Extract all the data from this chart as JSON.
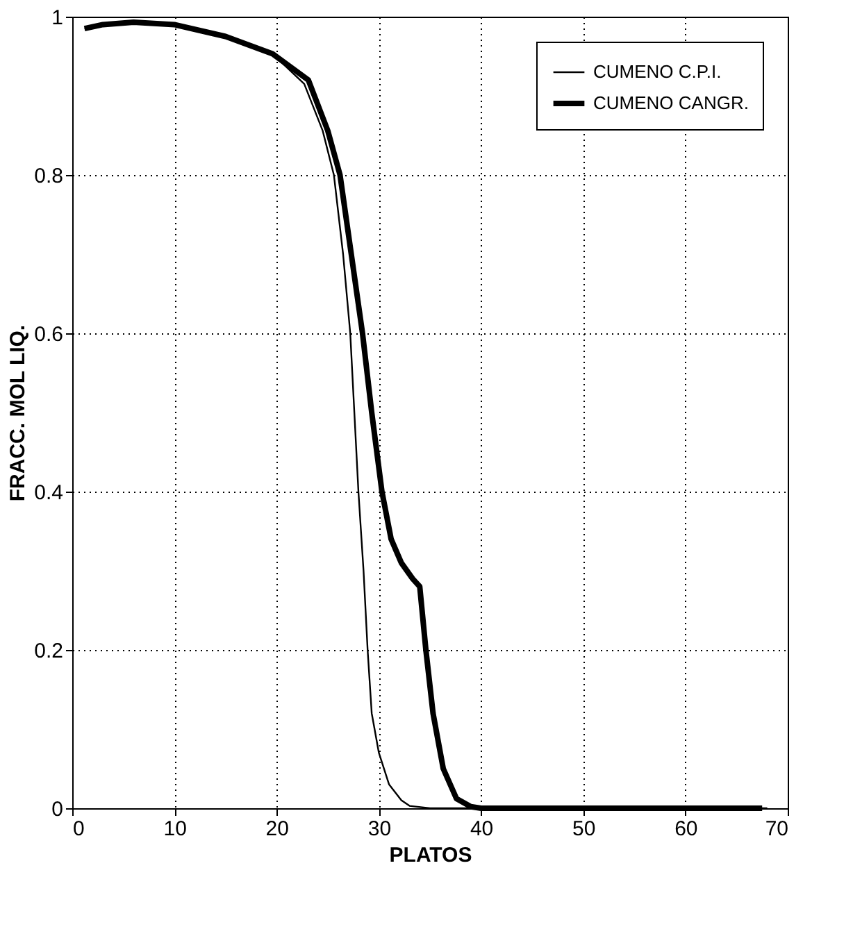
{
  "chart_data": {
    "type": "line",
    "xlabel": "PLATOS",
    "ylabel": "FRACC. MOL LIQ.",
    "xlim": [
      0,
      70
    ],
    "ylim": [
      0,
      1
    ],
    "xticks": [
      0,
      10,
      20,
      30,
      40,
      50,
      60,
      70
    ],
    "yticks": [
      0,
      0.2,
      0.4,
      0.6,
      0.8,
      1
    ],
    "grid": true,
    "legend": "top right",
    "line_style": "solid",
    "marker": "none",
    "series": [
      {
        "name": "CUMENO C.P.I.",
        "color": "#000000",
        "x": [
          1.2,
          3,
          6,
          10,
          15,
          19.6,
          22.7,
          24.5,
          25.6,
          26.5,
          27.2,
          28.0,
          28.5,
          28.9,
          29.3,
          30,
          31,
          32.2,
          33,
          35,
          40,
          50,
          60,
          68
        ],
        "values": [
          0.985,
          0.99,
          0.993,
          0.99,
          0.975,
          0.953,
          0.915,
          0.856,
          0.8,
          0.7,
          0.6,
          0.4,
          0.3,
          0.2,
          0.12,
          0.07,
          0.03,
          0.01,
          0.003,
          0,
          0,
          0,
          0,
          0
        ]
      },
      {
        "name": "CUMENO CANGR.",
        "color": "#000000",
        "x": [
          1.2,
          3,
          6,
          10,
          15,
          19.6,
          23.1,
          25,
          26.2,
          27.3,
          28.4,
          29.3,
          30.3,
          31.2,
          32.2,
          33.3,
          34.0,
          34.3,
          34.6,
          35.3,
          36.3,
          37.6,
          39,
          40,
          50,
          60,
          67.5
        ],
        "values": [
          0.985,
          0.99,
          0.993,
          0.99,
          0.975,
          0.953,
          0.92,
          0.856,
          0.8,
          0.7,
          0.6,
          0.5,
          0.4,
          0.34,
          0.31,
          0.29,
          0.28,
          0.24,
          0.2,
          0.12,
          0.05,
          0.012,
          0.002,
          0,
          0,
          0,
          0
        ]
      }
    ]
  }
}
